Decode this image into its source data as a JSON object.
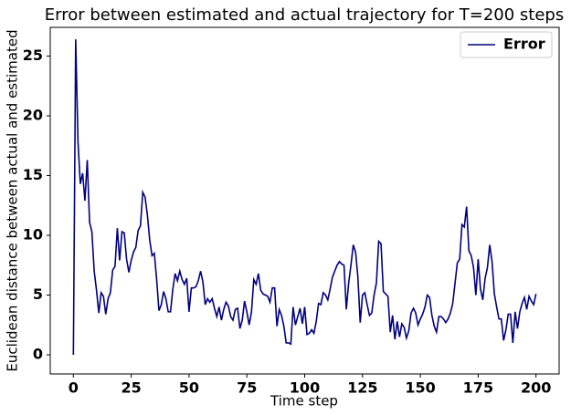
{
  "chart_data": {
    "type": "line",
    "title": "Error between estimated and actual trajectory for T=200 steps",
    "xlabel": "Time step",
    "ylabel": "Euclidean distance between actual and estimated",
    "x": [
      0,
      1,
      2,
      3,
      4,
      5,
      6,
      7,
      8,
      9,
      10,
      11,
      12,
      13,
      14,
      15,
      16,
      17,
      18,
      19,
      20,
      21,
      22,
      23,
      24,
      25,
      26,
      27,
      28,
      29,
      30,
      31,
      32,
      33,
      34,
      35,
      36,
      37,
      38,
      39,
      40,
      41,
      42,
      43,
      44,
      45,
      46,
      47,
      48,
      49,
      50,
      51,
      52,
      53,
      54,
      55,
      56,
      57,
      58,
      59,
      60,
      61,
      62,
      63,
      64,
      65,
      66,
      67,
      68,
      69,
      70,
      71,
      72,
      73,
      74,
      75,
      76,
      77,
      78,
      79,
      80,
      81,
      82,
      83,
      84,
      85,
      86,
      87,
      88,
      89,
      90,
      91,
      92,
      93,
      94,
      95,
      96,
      97,
      98,
      99,
      100,
      101,
      102,
      103,
      104,
      105,
      106,
      107,
      108,
      109,
      110,
      111,
      112,
      113,
      114,
      115,
      116,
      117,
      118,
      119,
      120,
      121,
      122,
      123,
      124,
      125,
      126,
      127,
      128,
      129,
      130,
      131,
      132,
      133,
      134,
      135,
      136,
      137,
      138,
      139,
      140,
      141,
      142,
      143,
      144,
      145,
      146,
      147,
      148,
      149,
      150,
      151,
      152,
      153,
      154,
      155,
      156,
      157,
      158,
      159,
      160,
      161,
      162,
      163,
      164,
      165,
      166,
      167,
      168,
      169,
      170,
      171,
      172,
      173,
      174,
      175,
      176,
      177,
      178,
      179,
      180,
      181,
      182,
      183,
      184,
      185,
      186,
      187,
      188,
      189,
      190,
      191,
      192,
      193,
      194,
      195,
      196,
      197,
      198,
      199,
      200
    ],
    "series": [
      {
        "name": "Error",
        "color": "#000080",
        "values": [
          0,
          26.4,
          17.8,
          14.3,
          15.2,
          12.9,
          16.3,
          11.1,
          10.3,
          7.0,
          5.4,
          3.5,
          5.2,
          4.9,
          3.4,
          4.7,
          5.2,
          7.1,
          7.4,
          10.6,
          7.9,
          10.3,
          10.2,
          8.0,
          6.9,
          7.9,
          8.6,
          9.0,
          10.4,
          10.8,
          13.6,
          13.2,
          11.7,
          9.6,
          8.3,
          8.5,
          6.3,
          3.7,
          4.2,
          5.3,
          4.7,
          3.6,
          3.6,
          5.5,
          6.8,
          6.2,
          7.0,
          6.3,
          5.9,
          6.4,
          3.6,
          5.6,
          5.6,
          5.7,
          6.2,
          7.0,
          6.1,
          4.2,
          4.7,
          4.4,
          4.7,
          3.9,
          3.2,
          4.0,
          2.9,
          3.8,
          4.4,
          4.1,
          3.2,
          2.9,
          3.8,
          3.9,
          2.2,
          2.9,
          4.5,
          3.6,
          2.5,
          3.6,
          6.3,
          5.9,
          6.8,
          5.4,
          5.1,
          5.0,
          4.9,
          4.4,
          5.6,
          5.6,
          2.4,
          3.8,
          3.3,
          2.4,
          1.0,
          1.0,
          0.9,
          4.0,
          2.5,
          3.2,
          3.9,
          2.6,
          4.0,
          1.7,
          1.8,
          2.1,
          1.8,
          2.8,
          4.3,
          4.2,
          5.2,
          5.0,
          4.6,
          5.5,
          6.5,
          7.0,
          7.5,
          7.8,
          7.6,
          7.5,
          3.8,
          6.0,
          7.5,
          9.2,
          8.6,
          6.5,
          2.7,
          5.0,
          5.2,
          4.2,
          3.3,
          3.5,
          5.0,
          6.0,
          9.5,
          9.3,
          5.3,
          5.1,
          4.9,
          1.9,
          3.3,
          1.3,
          2.8,
          1.5,
          2.6,
          2.3,
          1.4,
          2.0,
          3.5,
          3.9,
          3.5,
          2.5,
          3.0,
          3.4,
          4.0,
          5.0,
          4.8,
          3.3,
          2.4,
          1.9,
          3.2,
          3.2,
          3.0,
          2.7,
          3.0,
          3.5,
          4.3,
          6.0,
          7.7,
          8.0,
          10.9,
          10.7,
          12.4,
          8.7,
          8.3,
          7.3,
          5.0,
          8.0,
          5.5,
          4.6,
          6.4,
          7.3,
          9.2,
          7.8,
          5.1,
          4.0,
          3.0,
          3.0,
          1.2,
          2.1,
          3.4,
          3.4,
          1.0,
          3.6,
          2.2,
          3.6,
          4.3,
          4.8,
          3.8,
          4.9,
          4.5,
          4.2,
          5.1
        ]
      }
    ],
    "xlim": [
      -10,
      210
    ],
    "ylim": [
      -1.6,
      27.4
    ],
    "xticks": [
      0,
      25,
      50,
      75,
      100,
      125,
      150,
      175,
      200
    ],
    "yticks": [
      0,
      5,
      10,
      15,
      20,
      25
    ],
    "legend": "upper right",
    "grid": false
  }
}
